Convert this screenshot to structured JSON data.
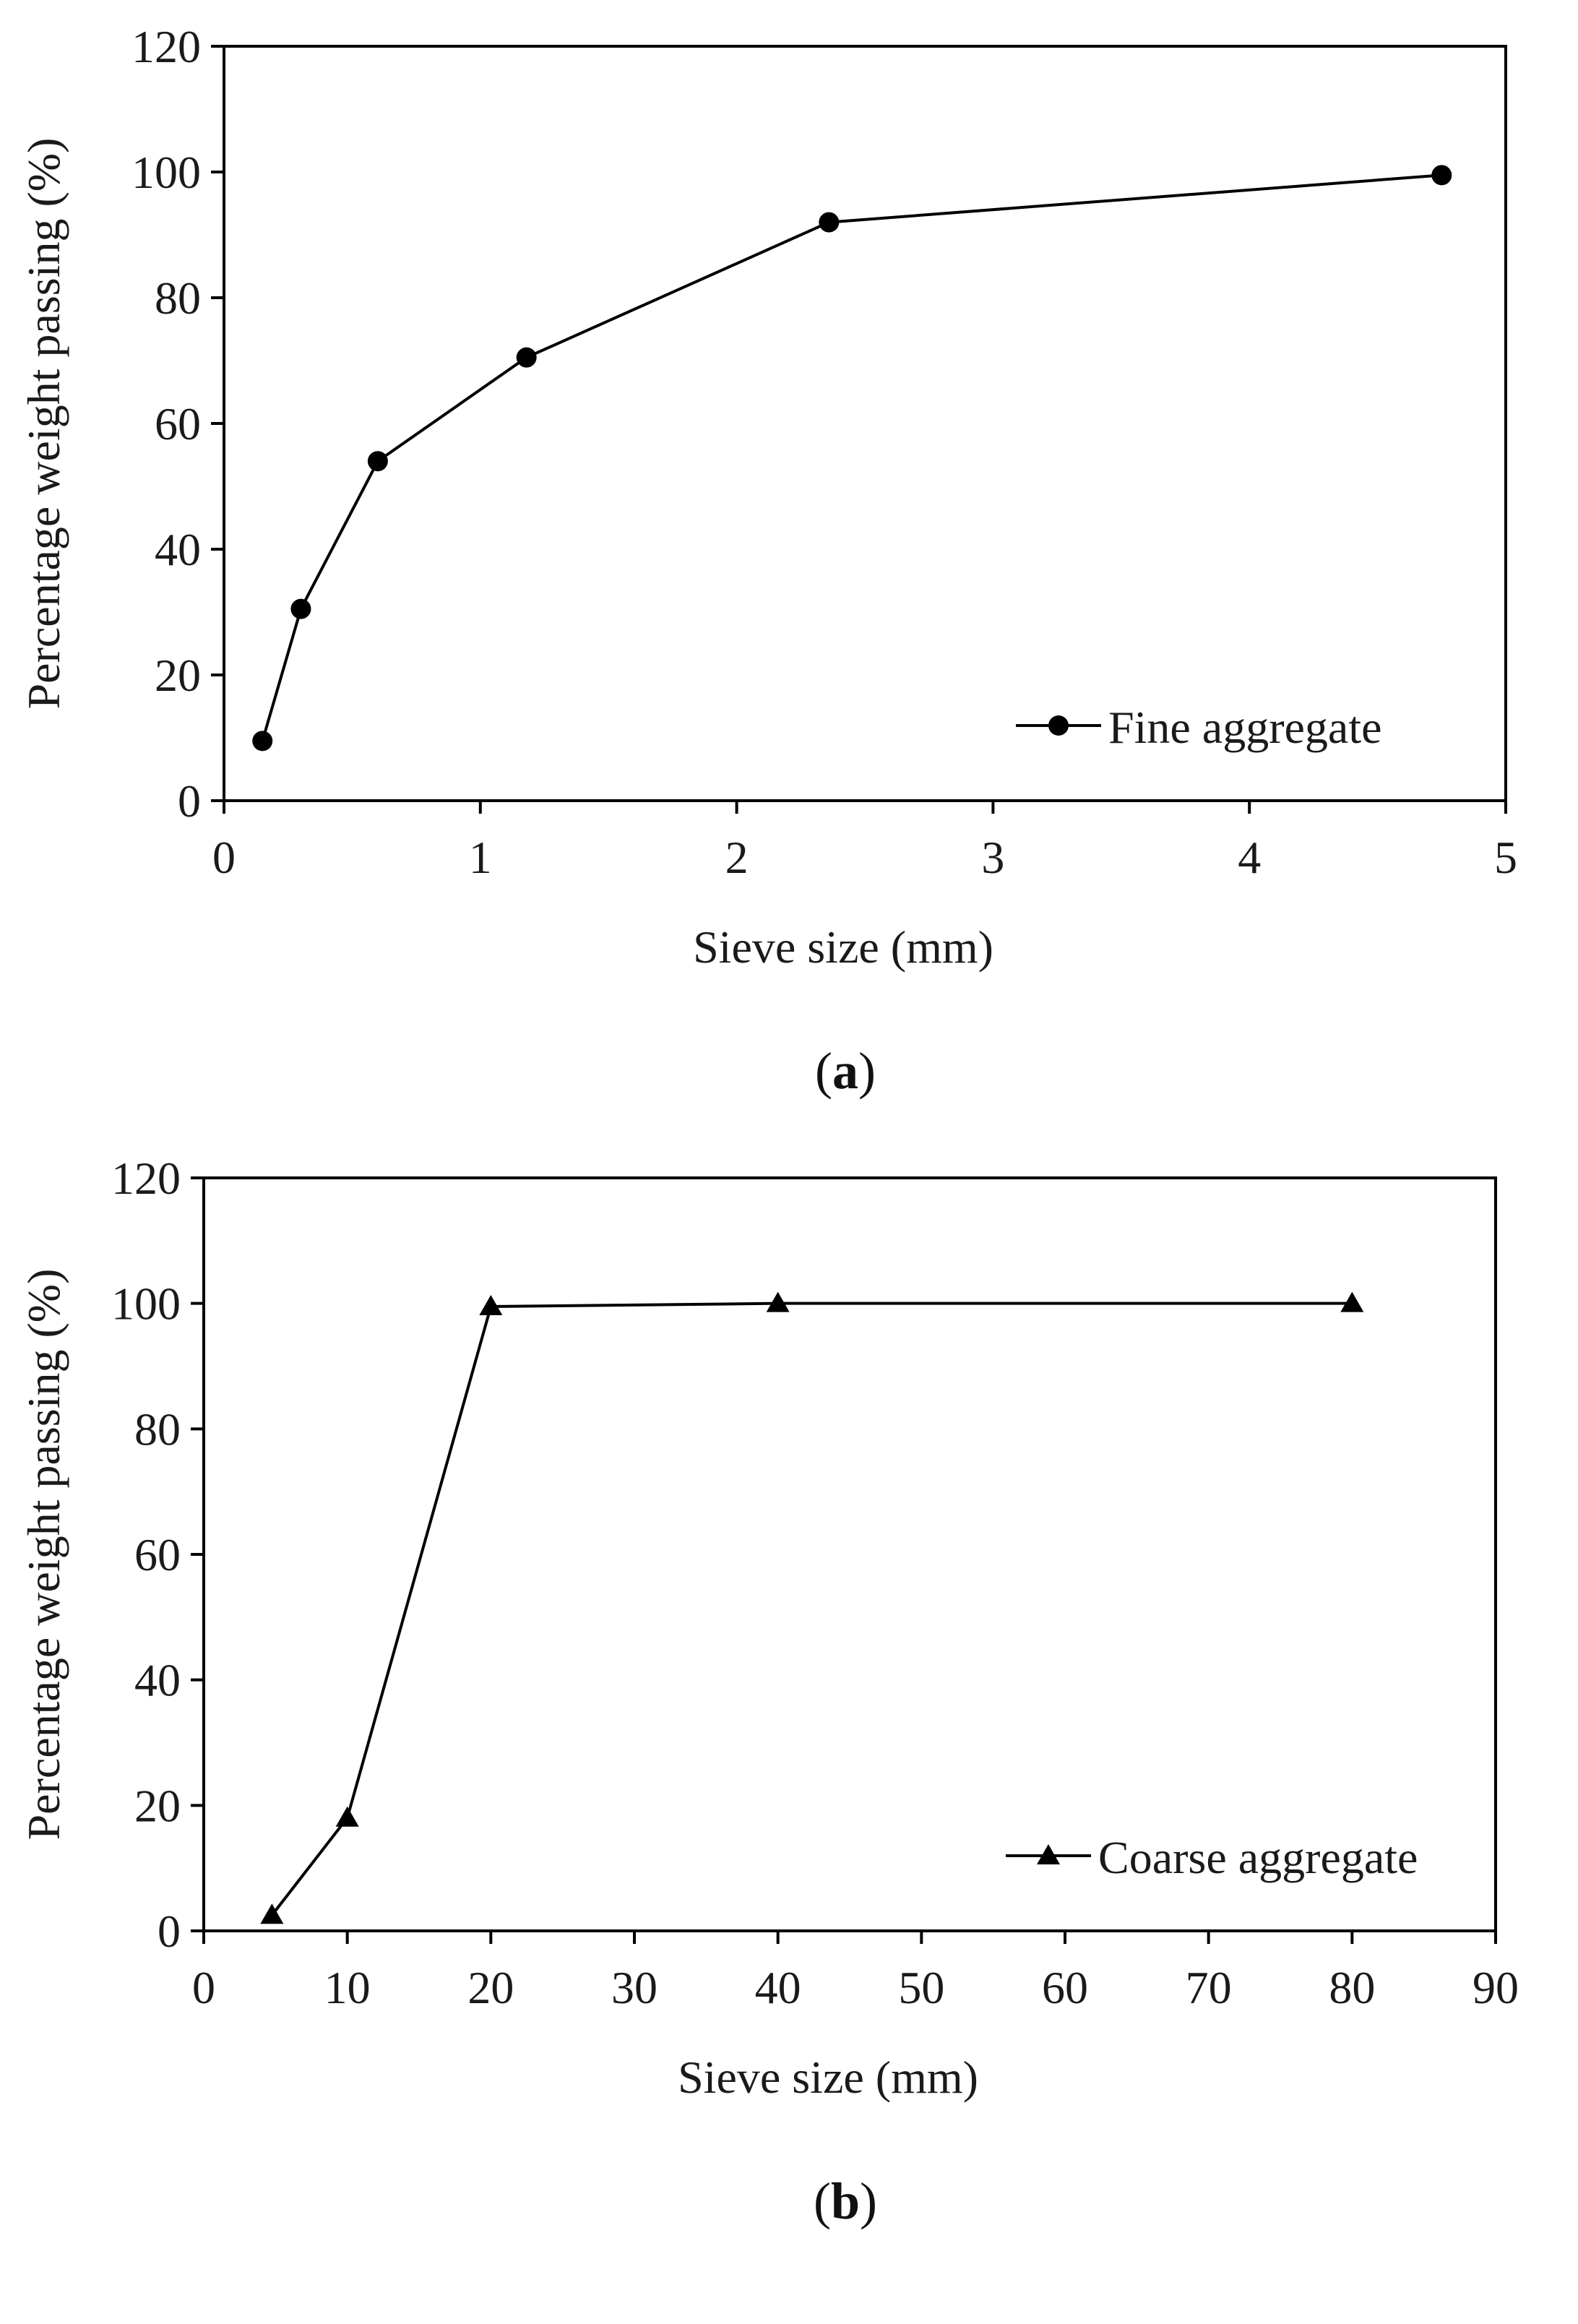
{
  "chart_data": [
    {
      "type": "line",
      "panel_label": "a",
      "xlabel": "Sieve size (mm)",
      "ylabel": "Percentage weight passing (%)",
      "xlim": [
        0,
        5
      ],
      "ylim": [
        0,
        120
      ],
      "xticks": [
        0,
        1,
        2,
        3,
        4,
        5
      ],
      "yticks": [
        0,
        20,
        40,
        60,
        80,
        100,
        120
      ],
      "grid": false,
      "legend_placement": "bottom-right",
      "series": [
        {
          "name": "Fine aggregate",
          "marker": "circle",
          "color": "#000000",
          "x": [
            0.15,
            0.3,
            0.6,
            1.18,
            2.36,
            4.75
          ],
          "y": [
            9.5,
            30.5,
            54,
            70.5,
            92,
            99.5
          ]
        }
      ]
    },
    {
      "type": "line",
      "panel_label": "b",
      "xlabel": "Sieve size (mm)",
      "ylabel": "Percentage weight passing (%)",
      "xlim": [
        0,
        90
      ],
      "ylim": [
        0,
        120
      ],
      "xticks": [
        0,
        10,
        20,
        30,
        40,
        50,
        60,
        70,
        80,
        90
      ],
      "yticks": [
        0,
        20,
        40,
        60,
        80,
        100,
        120
      ],
      "grid": false,
      "legend_placement": "bottom-right",
      "series": [
        {
          "name": "Coarse aggregate",
          "marker": "triangle",
          "color": "#000000",
          "x": [
            4.75,
            10,
            20,
            40,
            80
          ],
          "y": [
            2.5,
            18,
            99.5,
            100,
            100
          ]
        }
      ]
    }
  ]
}
